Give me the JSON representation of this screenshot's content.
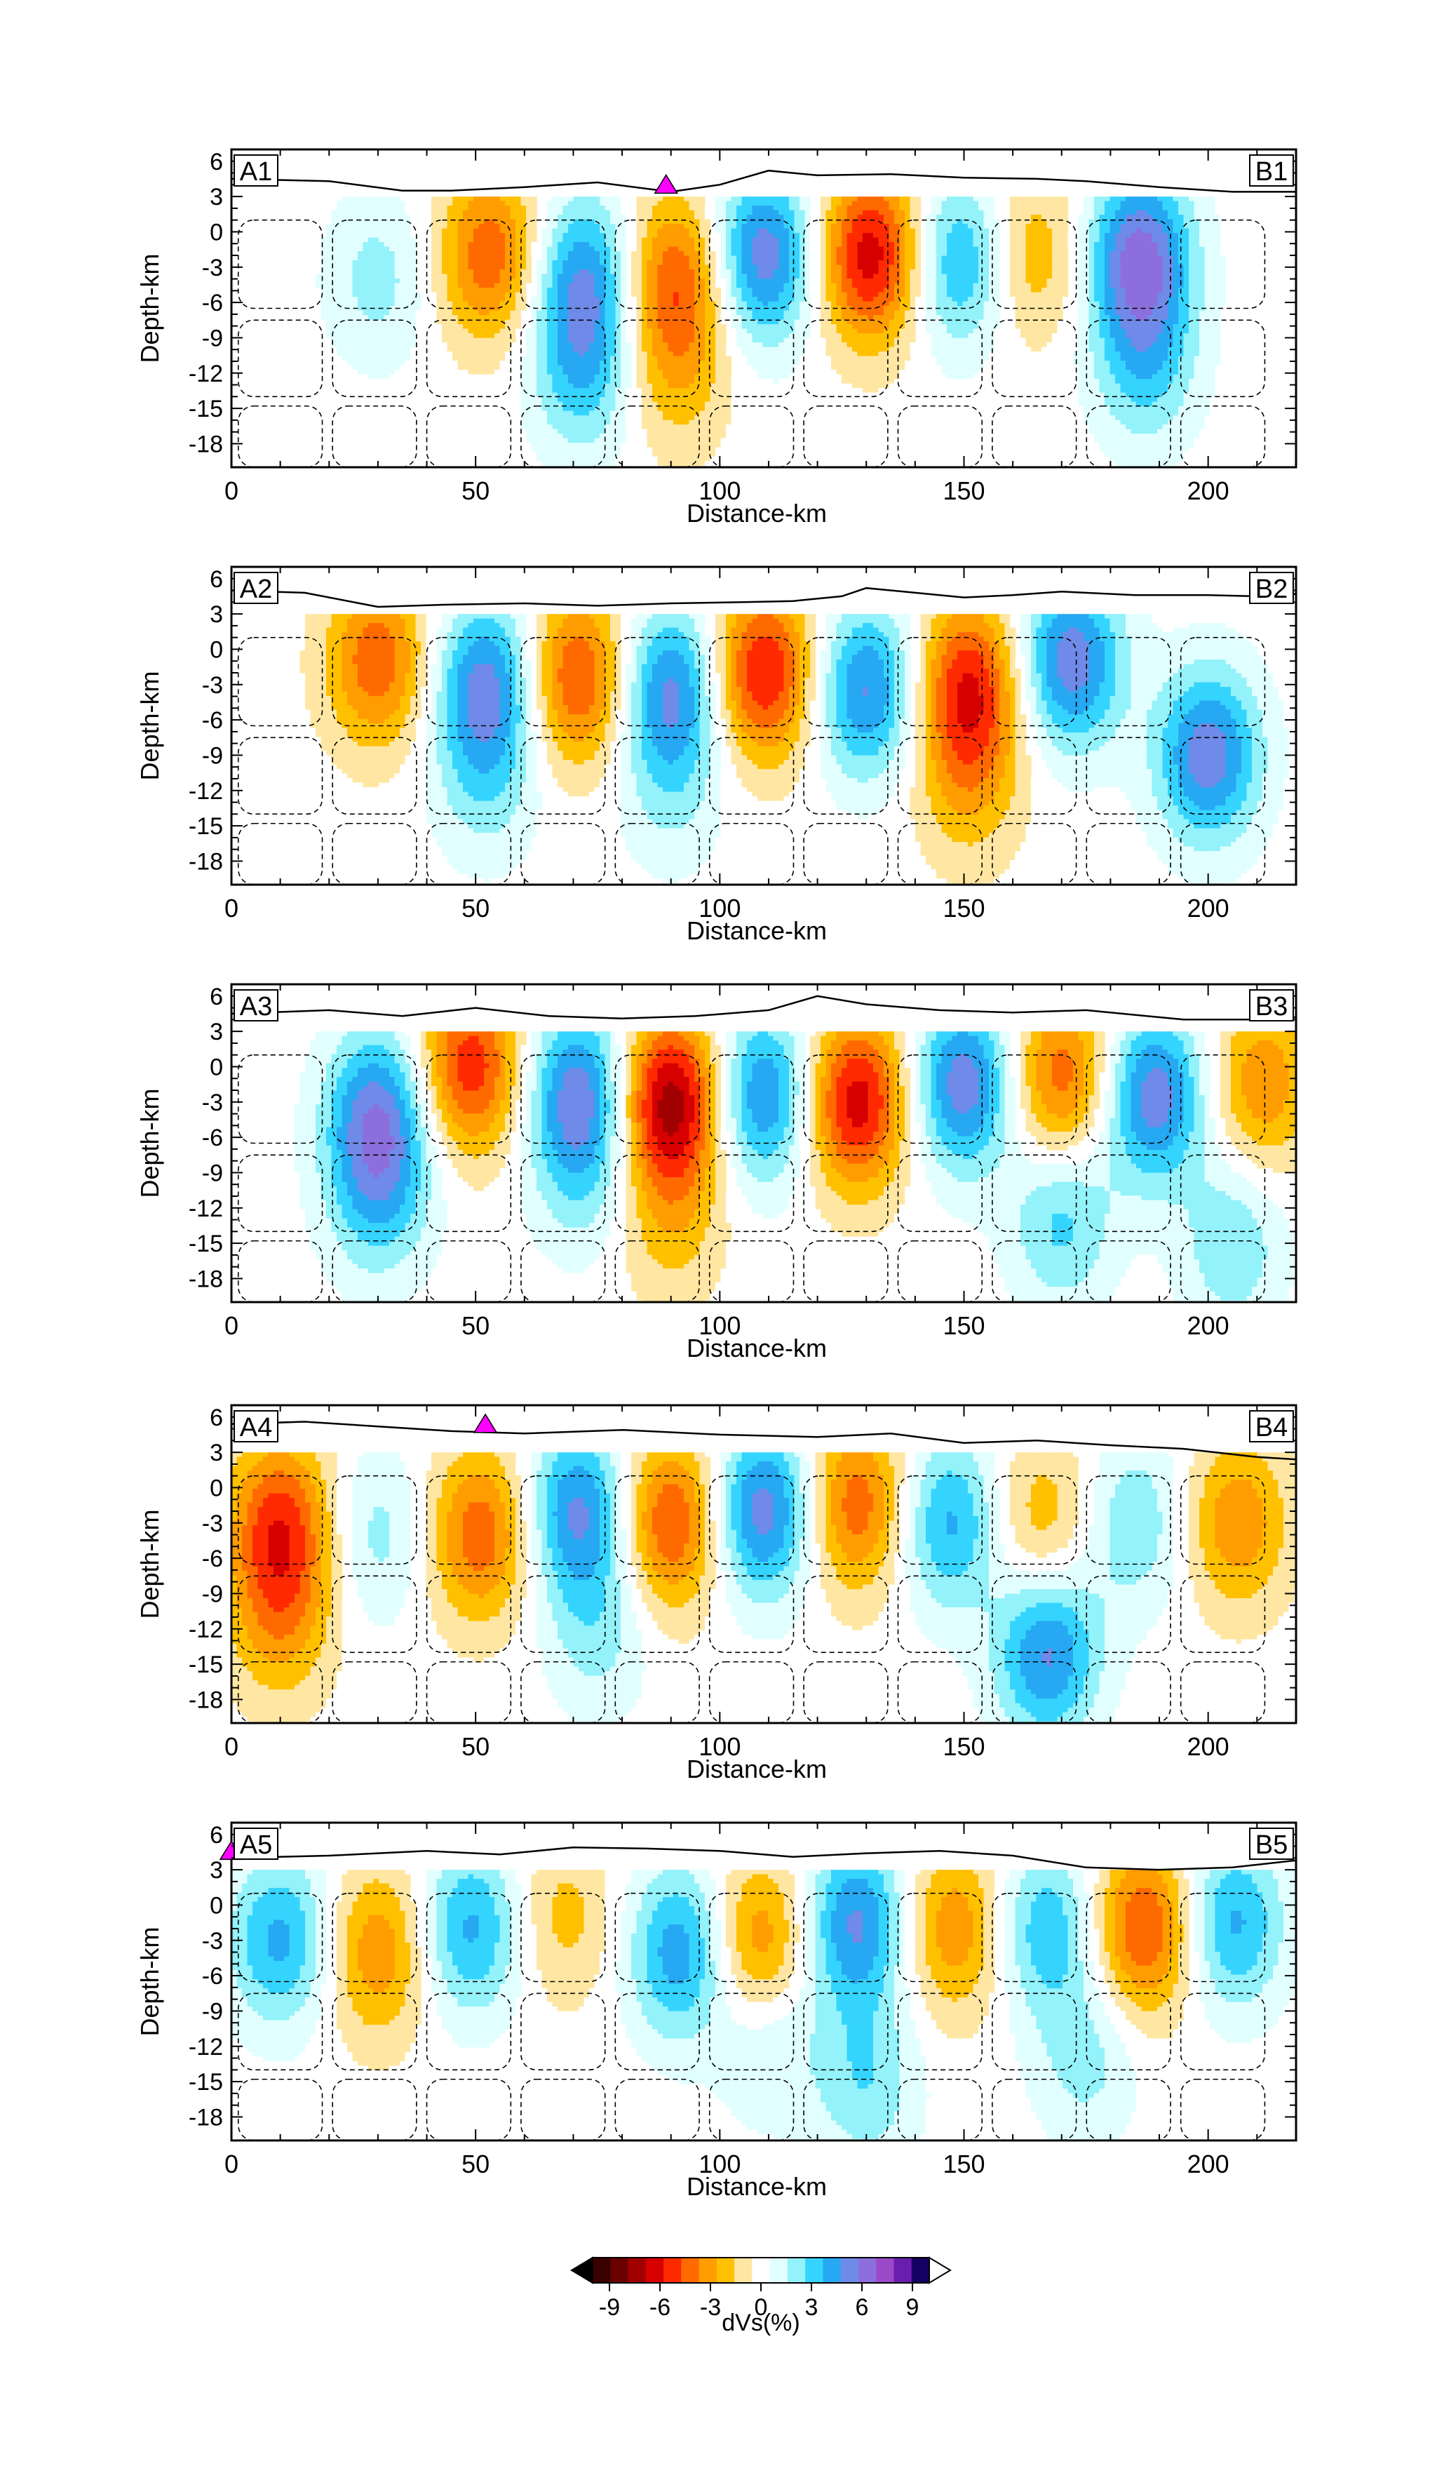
{
  "chart_data": [
    {
      "type": "heatmap",
      "panel_id": "A1",
      "start_label": "A1",
      "end_label": "B1",
      "xlabel": "Distance-km",
      "ylabel": "Depth-km",
      "xlim": [
        0,
        218
      ],
      "ylim": [
        -20,
        7
      ],
      "xticks": [
        0,
        50,
        100,
        150,
        200
      ],
      "yticks": [
        6,
        3,
        0,
        -3,
        -6,
        -9,
        -12,
        -15,
        -18
      ],
      "xtick_labels": [
        "0",
        "50",
        "100",
        "150",
        "200"
      ],
      "ytick_labels": [
        "6",
        "3",
        "0",
        "-3",
        "-6",
        "-9",
        "-12",
        "-15",
        "-18"
      ],
      "blobs": [
        {
          "x": 53,
          "y": -2,
          "amp": -4.5
        },
        {
          "x": 72,
          "y": -4,
          "amp": 4.5
        },
        {
          "x": 91,
          "y": -4,
          "amp": -4.5
        },
        {
          "x": 109,
          "y": -2,
          "amp": 5.5
        },
        {
          "x": 131,
          "y": -2,
          "amp": -6.5
        },
        {
          "x": 149,
          "y": -2.5,
          "amp": 4
        },
        {
          "x": 164,
          "y": -2,
          "amp": -2.5
        },
        {
          "x": 186,
          "y": -2,
          "amp": 6
        },
        {
          "x": 187,
          "y": -11,
          "amp": 3
        },
        {
          "x": 72,
          "y": -12,
          "amp": 3
        },
        {
          "x": 91,
          "y": -12,
          "amp": -2
        },
        {
          "x": 30,
          "y": -4,
          "amp": 2
        }
      ],
      "topography": [
        [
          0,
          4.5
        ],
        [
          20,
          4.3
        ],
        [
          35,
          3.5
        ],
        [
          45,
          3.5
        ],
        [
          60,
          3.8
        ],
        [
          75,
          4.2
        ],
        [
          90,
          3.4
        ],
        [
          100,
          4.0
        ],
        [
          110,
          5.2
        ],
        [
          120,
          4.8
        ],
        [
          135,
          4.9
        ],
        [
          150,
          4.6
        ],
        [
          165,
          4.5
        ],
        [
          175,
          4.3
        ],
        [
          190,
          3.8
        ],
        [
          205,
          3.4
        ],
        [
          218,
          3.4
        ]
      ],
      "volcano_x": 89
    },
    {
      "type": "heatmap",
      "panel_id": "A2",
      "start_label": "A2",
      "end_label": "B2",
      "xlabel": "Distance-km",
      "ylabel": "Depth-km",
      "xlim": [
        0,
        218
      ],
      "ylim": [
        -20,
        7
      ],
      "xticks": [
        0,
        50,
        100,
        150,
        200
      ],
      "yticks": [
        6,
        3,
        0,
        -3,
        -6,
        -9,
        -12,
        -15,
        -18
      ],
      "xtick_labels": [
        "0",
        "50",
        "100",
        "150",
        "200"
      ],
      "ytick_labels": [
        "6",
        "3",
        "0",
        "-3",
        "-6",
        "-9",
        "-12",
        "-15",
        "-18"
      ],
      "blobs": [
        {
          "x": 30,
          "y": -1,
          "amp": -4.5
        },
        {
          "x": 52,
          "y": -3,
          "amp": 5
        },
        {
          "x": 71,
          "y": -2.5,
          "amp": -5
        },
        {
          "x": 90,
          "y": -3.5,
          "amp": 5
        },
        {
          "x": 109,
          "y": -2,
          "amp": -6
        },
        {
          "x": 130,
          "y": -3.5,
          "amp": 5
        },
        {
          "x": 151,
          "y": -3,
          "amp": -5.5
        },
        {
          "x": 172,
          "y": -1,
          "amp": 5.5
        },
        {
          "x": 200,
          "y": -9,
          "amp": 5.5
        },
        {
          "x": 151,
          "y": -11,
          "amp": -2.5
        },
        {
          "x": 52,
          "y": -11,
          "amp": 2
        },
        {
          "x": 90,
          "y": -12,
          "amp": 1.5
        }
      ],
      "topography": [
        [
          0,
          5.0
        ],
        [
          15,
          4.8
        ],
        [
          30,
          3.6
        ],
        [
          45,
          3.8
        ],
        [
          60,
          3.9
        ],
        [
          75,
          3.7
        ],
        [
          90,
          3.9
        ],
        [
          105,
          4.0
        ],
        [
          115,
          4.1
        ],
        [
          125,
          4.5
        ],
        [
          130,
          5.2
        ],
        [
          140,
          4.8
        ],
        [
          150,
          4.4
        ],
        [
          160,
          4.6
        ],
        [
          170,
          4.9
        ],
        [
          185,
          4.6
        ],
        [
          200,
          4.6
        ],
        [
          210,
          4.5
        ],
        [
          218,
          4.7
        ]
      ],
      "volcano_x": null
    },
    {
      "type": "heatmap",
      "panel_id": "A3",
      "start_label": "A3",
      "end_label": "B3",
      "xlabel": "Distance-km",
      "ylabel": "Depth-km",
      "xlim": [
        0,
        218
      ],
      "ylim": [
        -20,
        7
      ],
      "xticks": [
        0,
        50,
        100,
        150,
        200
      ],
      "yticks": [
        6,
        3,
        0,
        -3,
        -6,
        -9,
        -12,
        -15,
        -18
      ],
      "xtick_labels": [
        "0",
        "50",
        "100",
        "150",
        "200"
      ],
      "ytick_labels": [
        "6",
        "3",
        "0",
        "-3",
        "-6",
        "-9",
        "-12",
        "-15",
        "-18"
      ],
      "blobs": [
        {
          "x": 30,
          "y": -4,
          "amp": 5
        },
        {
          "x": 49,
          "y": 0,
          "amp": -5.5
        },
        {
          "x": 71,
          "y": -2,
          "amp": 5
        },
        {
          "x": 90,
          "y": -3,
          "amp": -7.5
        },
        {
          "x": 109,
          "y": -2.5,
          "amp": 5
        },
        {
          "x": 128,
          "y": -3,
          "amp": -6.5
        },
        {
          "x": 150,
          "y": -1.5,
          "amp": 5.5
        },
        {
          "x": 170,
          "y": -1,
          "amp": -4.5
        },
        {
          "x": 189,
          "y": -2.5,
          "amp": 5.5
        },
        {
          "x": 211,
          "y": -1.5,
          "amp": -3.5
        },
        {
          "x": 30,
          "y": -11,
          "amp": 3
        },
        {
          "x": 72,
          "y": -9,
          "amp": 2
        },
        {
          "x": 170,
          "y": -13,
          "amp": 3
        },
        {
          "x": 205,
          "y": -15,
          "amp": 2.5
        },
        {
          "x": 90,
          "y": -13,
          "amp": -2
        }
      ],
      "topography": [
        [
          0,
          4.5
        ],
        [
          20,
          4.8
        ],
        [
          35,
          4.3
        ],
        [
          50,
          5.0
        ],
        [
          65,
          4.3
        ],
        [
          80,
          4.1
        ],
        [
          95,
          4.3
        ],
        [
          110,
          4.8
        ],
        [
          120,
          6.0
        ],
        [
          130,
          5.3
        ],
        [
          145,
          4.8
        ],
        [
          160,
          4.6
        ],
        [
          175,
          4.8
        ],
        [
          195,
          4.0
        ],
        [
          210,
          4.0
        ],
        [
          218,
          4.2
        ]
      ],
      "volcano_x": null
    },
    {
      "type": "heatmap",
      "panel_id": "A4",
      "start_label": "A4",
      "end_label": "B4",
      "xlabel": "Distance-km",
      "ylabel": "Depth-km",
      "xlim": [
        0,
        218
      ],
      "ylim": [
        -20,
        7
      ],
      "xticks": [
        0,
        50,
        100,
        150,
        200
      ],
      "yticks": [
        6,
        3,
        0,
        -3,
        -6,
        -9,
        -12,
        -15,
        -18
      ],
      "xtick_labels": [
        "0",
        "50",
        "100",
        "150",
        "200"
      ],
      "ytick_labels": [
        "6",
        "3",
        "0",
        "-3",
        "-6",
        "-9",
        "-12",
        "-15",
        "-18"
      ],
      "blobs": [
        {
          "x": 10,
          "y": -3,
          "amp": -5
        },
        {
          "x": 10,
          "y": -11,
          "amp": -3
        },
        {
          "x": 30,
          "y": -4,
          "amp": 2
        },
        {
          "x": 51,
          "y": -4,
          "amp": -4.5
        },
        {
          "x": 71,
          "y": -2,
          "amp": 5
        },
        {
          "x": 90,
          "y": -3,
          "amp": -5
        },
        {
          "x": 109,
          "y": -2,
          "amp": 5.5
        },
        {
          "x": 128,
          "y": -1.5,
          "amp": -4.5
        },
        {
          "x": 147,
          "y": -3,
          "amp": 4
        },
        {
          "x": 166,
          "y": -3,
          "amp": -2.5
        },
        {
          "x": 185,
          "y": -3,
          "amp": 2.5
        },
        {
          "x": 206,
          "y": -3,
          "amp": -3.5
        },
        {
          "x": 167,
          "y": -14,
          "amp": 5
        },
        {
          "x": 75,
          "y": -12,
          "amp": 2
        }
      ],
      "topography": [
        [
          0,
          5.4
        ],
        [
          15,
          5.6
        ],
        [
          30,
          5.2
        ],
        [
          45,
          4.8
        ],
        [
          60,
          4.6
        ],
        [
          80,
          4.9
        ],
        [
          100,
          4.5
        ],
        [
          120,
          4.3
        ],
        [
          135,
          4.6
        ],
        [
          150,
          3.8
        ],
        [
          165,
          4.0
        ],
        [
          180,
          3.6
        ],
        [
          195,
          3.3
        ],
        [
          210,
          2.6
        ],
        [
          218,
          2.4
        ]
      ],
      "volcano_x": 52
    },
    {
      "type": "heatmap",
      "panel_id": "A5",
      "start_label": "A5",
      "end_label": "B5",
      "xlabel": "Distance-km",
      "ylabel": "Depth-km",
      "xlim": [
        0,
        218
      ],
      "ylim": [
        -20,
        7
      ],
      "xticks": [
        0,
        50,
        100,
        150,
        200
      ],
      "yticks": [
        6,
        3,
        0,
        -3,
        -6,
        -9,
        -12,
        -15,
        -18
      ],
      "xtick_labels": [
        "0",
        "50",
        "100",
        "150",
        "200"
      ],
      "ytick_labels": [
        "6",
        "3",
        "0",
        "-3",
        "-6",
        "-9",
        "-12",
        "-15",
        "-18"
      ],
      "blobs": [
        {
          "x": 10,
          "y": -3,
          "amp": 4
        },
        {
          "x": 30,
          "y": -4,
          "amp": -3.5
        },
        {
          "x": 49,
          "y": -2,
          "amp": 4
        },
        {
          "x": 68,
          "y": -1,
          "amp": -2
        },
        {
          "x": 92,
          "y": -4,
          "amp": 4.5
        },
        {
          "x": 108,
          "y": -3.5,
          "amp": -4
        },
        {
          "x": 128,
          "y": -1.5,
          "amp": 5
        },
        {
          "x": 148,
          "y": -2,
          "amp": -3.5
        },
        {
          "x": 167,
          "y": -2,
          "amp": 3.5
        },
        {
          "x": 187,
          "y": -2,
          "amp": -5
        },
        {
          "x": 205,
          "y": -1.5,
          "amp": 4
        },
        {
          "x": 130,
          "y": -15,
          "amp": 2.5
        },
        {
          "x": 110,
          "y": -11,
          "amp": 2
        },
        {
          "x": 175,
          "y": -13,
          "amp": 2
        }
      ],
      "topography": [
        [
          0,
          4.0
        ],
        [
          20,
          4.2
        ],
        [
          40,
          4.6
        ],
        [
          55,
          4.3
        ],
        [
          70,
          4.9
        ],
        [
          85,
          4.8
        ],
        [
          100,
          4.6
        ],
        [
          115,
          4.1
        ],
        [
          130,
          4.4
        ],
        [
          145,
          4.6
        ],
        [
          160,
          4.2
        ],
        [
          175,
          3.2
        ],
        [
          190,
          3.0
        ],
        [
          205,
          3.2
        ],
        [
          218,
          3.8
        ]
      ],
      "volcano_x": 0
    }
  ],
  "colorbar": {
    "label": "dVs(%)",
    "min": -10,
    "max": 10,
    "ticks": [
      "-9",
      "-6",
      "-3",
      "0",
      "3",
      "6",
      "9"
    ],
    "tick_values": [
      -9,
      -6,
      -3,
      0,
      3,
      6,
      9
    ],
    "colors": [
      "#3a0000",
      "#6a0000",
      "#a10000",
      "#d60000",
      "#ff2a00",
      "#ff6a00",
      "#ff9c00",
      "#ffc000",
      "#ffe7a3",
      "#ffffff",
      "#e2ffff",
      "#93f2fa",
      "#35d4ff",
      "#26a8f2",
      "#6f8ae8",
      "#8c6fdc",
      "#9a4ac8",
      "#6a1eb0",
      "#140060"
    ]
  },
  "colors": {
    "volcano": "#ff00ff",
    "anomaly_outline": "#000000"
  }
}
